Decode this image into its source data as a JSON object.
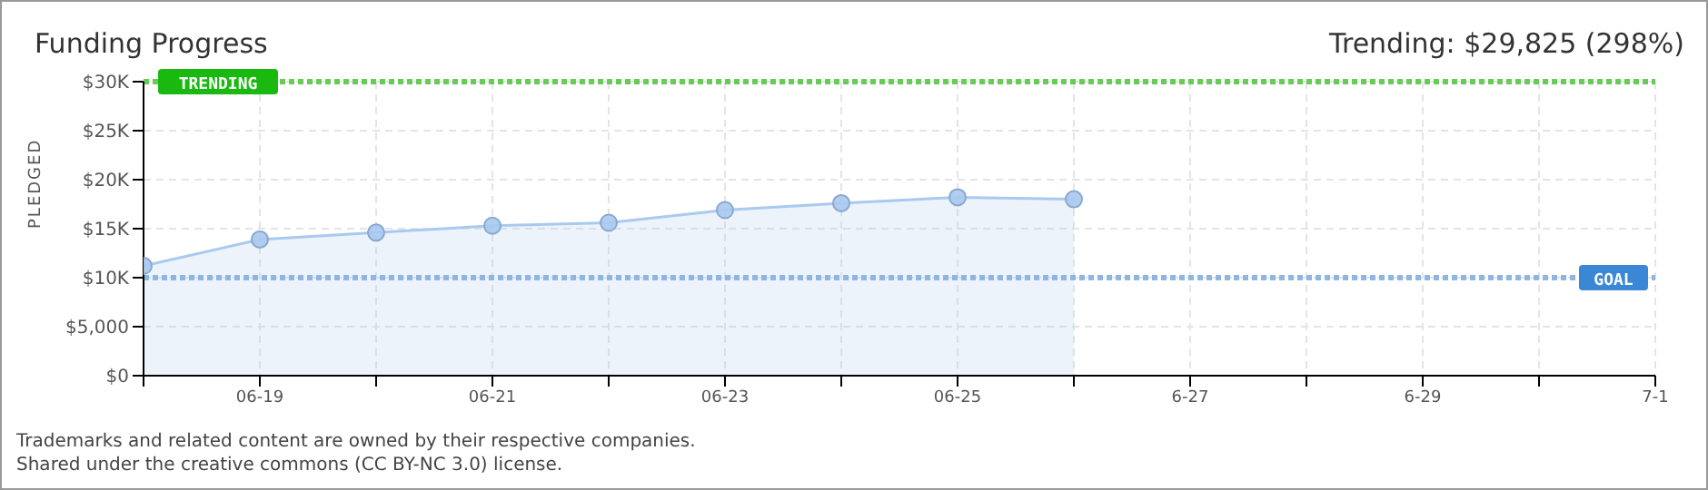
{
  "chart_data": {
    "type": "area",
    "title": "Funding Progress",
    "subtitle": "Trending:  $29,825 (298%)",
    "ylabel": "PLEDGED",
    "x": [
      "--06-18",
      "--06-19",
      "--06-20",
      "--06-21",
      "--06-22",
      "--06-23",
      "--06-24",
      "--06-25",
      "--06-26"
    ],
    "series": [
      {
        "color": "#a9c9ef",
        "values": [
          11200,
          13900,
          14600,
          15300,
          15600,
          16900,
          17600,
          18200,
          18000
        ]
      }
    ],
    "xlim": [
      "--06-18",
      "--07-01"
    ],
    "xticks": [
      {
        "value": "--06-18",
        "label": null
      },
      {
        "value": "--06-19",
        "label": "06-19"
      },
      {
        "value": "--06-20",
        "label": null
      },
      {
        "value": "--06-21",
        "label": "06-21"
      },
      {
        "value": "--06-22",
        "label": null
      },
      {
        "value": "--06-23",
        "label": "06-23"
      },
      {
        "value": "--06-24",
        "label": null
      },
      {
        "value": "--06-25",
        "label": "06-25"
      },
      {
        "value": "--06-26",
        "label": null
      },
      {
        "value": "--06-27",
        "label": "6-27"
      },
      {
        "value": "--06-28",
        "label": null
      },
      {
        "value": "--06-29",
        "label": "6-29"
      },
      {
        "value": "--06-30",
        "label": null
      },
      {
        "value": "--07-01",
        "label": "7-1"
      }
    ],
    "ylim": [
      0,
      30000
    ],
    "yticks": [
      {
        "value": 0,
        "label": "$0"
      },
      {
        "value": 5000,
        "label": "$5,000"
      },
      {
        "value": 10000,
        "label": "$10K"
      },
      {
        "value": 15000,
        "label": "$15K"
      },
      {
        "value": 20000,
        "label": "$20K"
      },
      {
        "value": 25000,
        "label": "$25K"
      },
      {
        "value": 30000,
        "label": "$30K"
      }
    ],
    "ref_lines": [
      {
        "axis": "y",
        "value": 30000,
        "label": "TRENDING",
        "color": "#66cc55",
        "line_style": "dotted"
      },
      {
        "axis": "y",
        "value": 10000,
        "label": "GOAL",
        "color": "#8fb5e3",
        "line_style": "dotted"
      }
    ],
    "grid": true,
    "marker": "circle",
    "annotations": [
      "Trademarks and related content are owned by their respective companies.",
      "Shared under the creative commons (CC BY-NC 3.0) license."
    ]
  }
}
